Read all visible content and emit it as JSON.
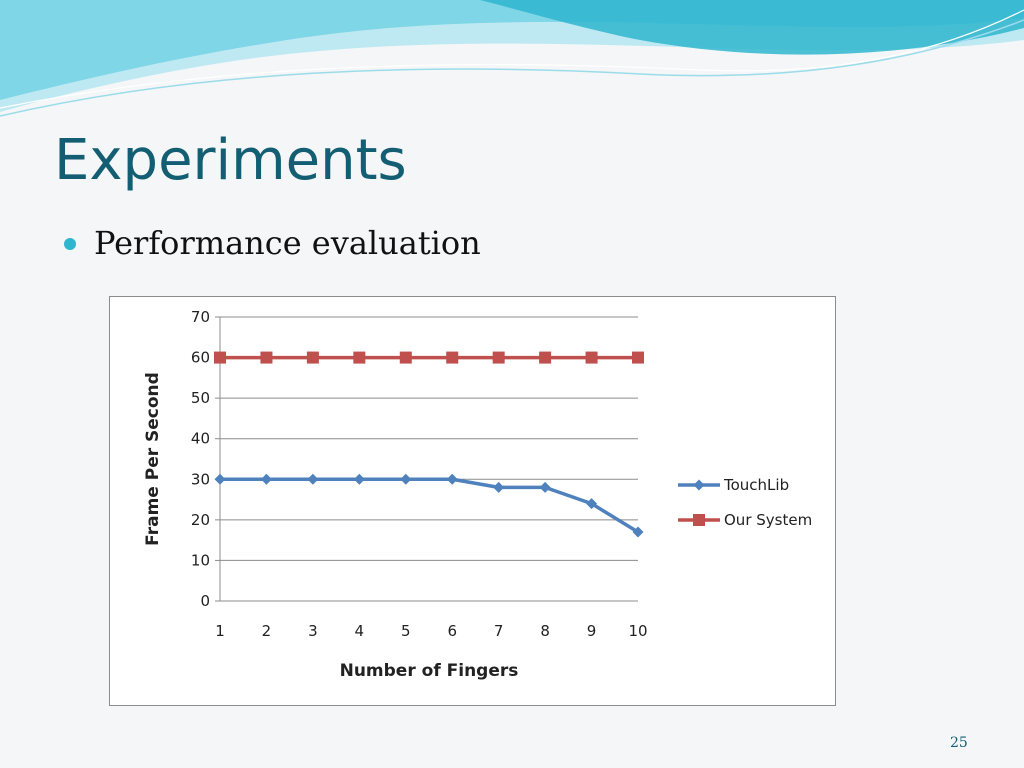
{
  "slide": {
    "title": "Experiments",
    "bullet": "Performance evaluation",
    "page_number": "25"
  },
  "theme": {
    "title_color": "#135e73",
    "bullet_color": "#2fb6cf",
    "wave_light": "#bfe9f2",
    "wave_mid": "#6fd0e3",
    "wave_dark": "#2fb6cf"
  },
  "chart_data": {
    "type": "line",
    "title": "",
    "xlabel": "Number of Fingers",
    "ylabel": "Frame Per Second",
    "categories": [
      "1",
      "2",
      "3",
      "4",
      "5",
      "6",
      "7",
      "8",
      "9",
      "10"
    ],
    "ylim": [
      0,
      70
    ],
    "yticks": [
      "0",
      "10",
      "20",
      "30",
      "40",
      "50",
      "60",
      "70"
    ],
    "grid": "horizontal",
    "legend_position": "right",
    "series": [
      {
        "name": "TouchLib",
        "values": [
          30,
          30,
          30,
          30,
          30,
          30,
          28,
          28,
          24,
          17
        ],
        "color": "#4f81bd",
        "marker": "diamond"
      },
      {
        "name": "Our System",
        "values": [
          60,
          60,
          60,
          60,
          60,
          60,
          60,
          60,
          60,
          60
        ],
        "color": "#c0504d",
        "marker": "square"
      }
    ]
  }
}
